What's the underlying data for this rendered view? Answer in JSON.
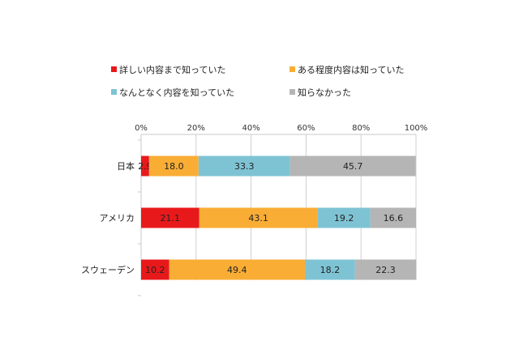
{
  "chart_data": {
    "type": "bar",
    "orientation": "horizontal",
    "stacked": true,
    "percent": true,
    "categories": [
      "日本",
      "アメリカ",
      "スウェーデン"
    ],
    "series": [
      {
        "name": "詳しい内容まで知っていた",
        "color": "#e8191b",
        "values": [
          2.9,
          21.1,
          10.2
        ]
      },
      {
        "name": "ある程度内容は知っていた",
        "color": "#f9ad35",
        "values": [
          18.0,
          43.1,
          49.4
        ]
      },
      {
        "name": "なんとなく内容を知っていた",
        "color": "#7ec3d4",
        "values": [
          33.3,
          19.2,
          18.2
        ]
      },
      {
        "name": "知らなかった",
        "color": "#b5b5b5",
        "values": [
          45.7,
          16.6,
          22.3
        ]
      }
    ],
    "xlim": [
      0,
      100
    ],
    "xticks": [
      "0%",
      "20%",
      "40%",
      "60%",
      "80%",
      "100%"
    ],
    "grid": true,
    "legend_position": "top"
  }
}
